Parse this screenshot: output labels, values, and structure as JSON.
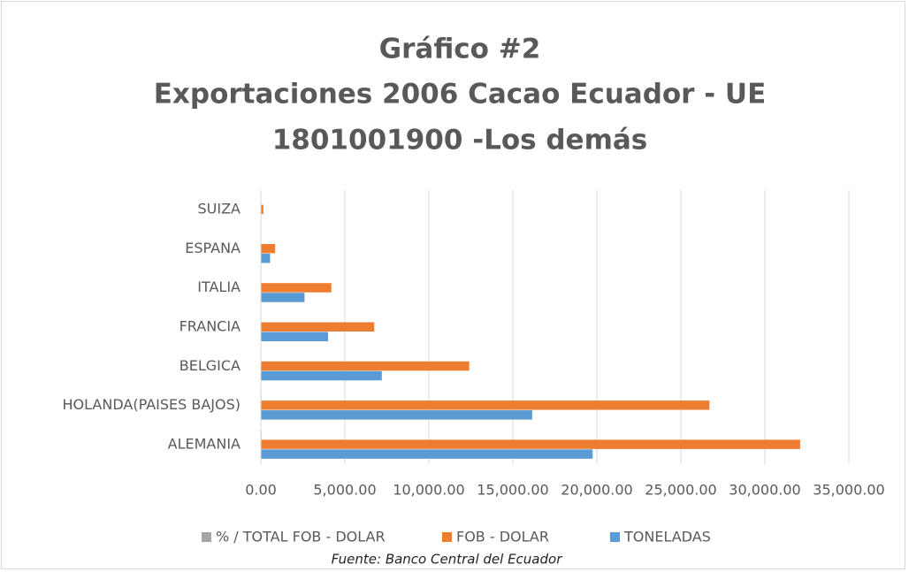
{
  "chart_data": {
    "type": "bar",
    "orientation": "horizontal",
    "title": [
      "Gráfico #2",
      "Exportaciones 2006 Cacao Ecuador - UE",
      "1801001900 -Los demás"
    ],
    "categories": [
      "ALEMANIA",
      "HOLANDA(PAISES BAJOS)",
      "BELGICA",
      "FRANCIA",
      "ITALIA",
      "ESPANA",
      "SUIZA"
    ],
    "series": [
      {
        "name": "% / TOTAL FOB - DOLAR",
        "color": "#a5a5a5",
        "values": [
          38.6,
          32.1,
          14.9,
          8.1,
          5.1,
          1.0,
          0.2
        ]
      },
      {
        "name": "FOB - DOLAR",
        "color": "#ed7d31",
        "values": [
          32100,
          26700,
          12400,
          6750,
          4200,
          850,
          150
        ]
      },
      {
        "name": "TONELADAS",
        "color": "#5b9bd5",
        "values": [
          19750,
          16150,
          7200,
          4000,
          2600,
          550,
          20
        ]
      }
    ],
    "xlim": [
      0,
      35000
    ],
    "xticks": [
      {
        "value": 0,
        "label": "0.00"
      },
      {
        "value": 5000,
        "label": "5,000.00"
      },
      {
        "value": 10000,
        "label": "10,000.00"
      },
      {
        "value": 15000,
        "label": "15,000.00"
      },
      {
        "value": 20000,
        "label": "20,000.00"
      },
      {
        "value": 25000,
        "label": "25,000.00"
      },
      {
        "value": 30000,
        "label": "30,000.00"
      },
      {
        "value": 35000,
        "label": "35,000.00"
      }
    ],
    "grid": true,
    "legend": "bottom",
    "source": "Fuente: Banco Central del Ecuador"
  }
}
